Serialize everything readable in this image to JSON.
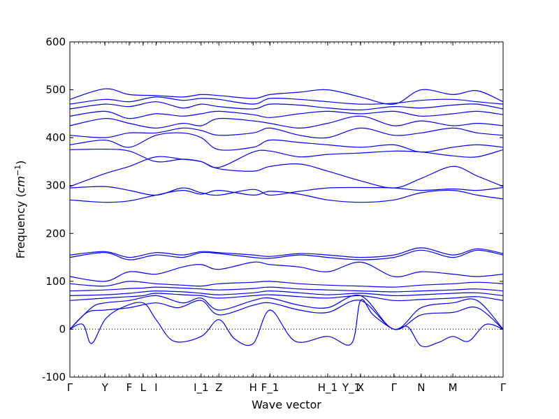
{
  "chart_data": {
    "type": "line",
    "title": "",
    "xlabel": "Wave vector",
    "ylabel": "Frequency",
    "ylabel_unit_base": "cm",
    "ylabel_unit_exp": "−1",
    "ylim": [
      -100,
      600
    ],
    "yticks": [
      -100,
      0,
      100,
      200,
      300,
      400,
      500,
      600
    ],
    "xlim": [
      0,
      100
    ],
    "grid": false,
    "legend": "none",
    "zero_line": 0,
    "line_color": "#0000ff",
    "high_symmetry_points": [
      {
        "label": "Γ",
        "x": 0
      },
      {
        "label": "Y",
        "x": 8.1
      },
      {
        "label": "F",
        "x": 13.7
      },
      {
        "label": "L",
        "x": 16.9
      },
      {
        "label": "I",
        "x": 19.9
      },
      {
        "label": "I_1",
        "x": 30.3
      },
      {
        "label": "Z",
        "x": 34.4
      },
      {
        "label": "H",
        "x": 42.3
      },
      {
        "label": "F_1",
        "x": 46.2
      },
      {
        "label": "H_1",
        "x": 59.5
      },
      {
        "label": "Y_1",
        "x": 65.0
      },
      {
        "label": "X",
        "x": 67.1
      },
      {
        "label": "Γ",
        "x": 74.8
      },
      {
        "label": "N",
        "x": 81.1
      },
      {
        "label": "M",
        "x": 88.4
      },
      {
        "label": "Γ",
        "x": 100
      }
    ],
    "series": [
      {
        "x": [
          0,
          3,
          5,
          8.1,
          12,
          16.9,
          19.9,
          24,
          30.3,
          34.4,
          38,
          42.3,
          46.2,
          52,
          59.5,
          65,
          67.1,
          70,
          74.8,
          78,
          81.1,
          85,
          88.4,
          92,
          96,
          100
        ],
        "y": [
          0,
          10,
          -30,
          20,
          45,
          55,
          20,
          -25,
          -15,
          20,
          -20,
          -30,
          40,
          -25,
          -15,
          -30,
          60,
          30,
          0,
          5,
          -35,
          -28,
          -15,
          -25,
          10,
          0
        ]
      },
      {
        "x": [
          0,
          4,
          8.1,
          13.7,
          19.9,
          25,
          30.3,
          34.4,
          42.3,
          46.2,
          53,
          59.5,
          67.1,
          74.8,
          81.1,
          88.4,
          94,
          100
        ],
        "y": [
          0,
          35,
          40,
          45,
          55,
          45,
          60,
          30,
          50,
          55,
          40,
          35,
          60,
          0,
          30,
          35,
          45,
          0
        ]
      },
      {
        "x": [
          0,
          5,
          8.1,
          13.7,
          19.9,
          26,
          30.3,
          34.4,
          42.3,
          46.2,
          53,
          59.5,
          67.1,
          74.8,
          81.1,
          88.4,
          94,
          100
        ],
        "y": [
          0,
          45,
          55,
          60,
          70,
          55,
          65,
          40,
          60,
          65,
          50,
          45,
          70,
          0,
          45,
          55,
          60,
          0
        ]
      },
      {
        "x": [
          0,
          8.1,
          13.7,
          16.9,
          19.9,
          26,
          30.3,
          34.4,
          42.3,
          46.2,
          53,
          59.5,
          67.1,
          74.8,
          81.1,
          88.4,
          94,
          100
        ],
        "y": [
          60,
          65,
          68,
          70,
          75,
          72,
          70,
          65,
          70,
          72,
          68,
          65,
          70,
          60,
          62,
          65,
          68,
          60
        ]
      },
      {
        "x": [
          0,
          8.1,
          13.7,
          16.9,
          19.9,
          26,
          30.3,
          34.4,
          42.3,
          46.2,
          53,
          59.5,
          67.1,
          74.8,
          81.1,
          88.4,
          94,
          100
        ],
        "y": [
          70,
          72,
          75,
          78,
          80,
          78,
          75,
          72,
          76,
          80,
          76,
          72,
          75,
          70,
          72,
          75,
          76,
          70
        ]
      },
      {
        "x": [
          0,
          8.1,
          13.7,
          16.9,
          19.9,
          26,
          30.3,
          34.4,
          42.3,
          46.2,
          53,
          59.5,
          67.1,
          74.8,
          81.1,
          88.4,
          94,
          100
        ],
        "y": [
          80,
          82,
          85,
          86,
          88,
          86,
          84,
          82,
          85,
          88,
          84,
          82,
          80,
          78,
          80,
          82,
          84,
          80
        ]
      },
      {
        "x": [
          0,
          8.1,
          13.7,
          19.9,
          26,
          30.3,
          34.4,
          42.3,
          46.2,
          53,
          59.5,
          67.1,
          74.8,
          81.1,
          88.4,
          94,
          100
        ],
        "y": [
          95,
          90,
          100,
          95,
          92,
          90,
          95,
          98,
          100,
          95,
          92,
          90,
          88,
          92,
          95,
          98,
          95
        ]
      },
      {
        "x": [
          0,
          8.1,
          13.7,
          19.9,
          26,
          30.3,
          34.4,
          42.3,
          46.2,
          53,
          59.5,
          67.1,
          74.8,
          81.1,
          88.4,
          94,
          100
        ],
        "y": [
          110,
          100,
          120,
          115,
          130,
          135,
          125,
          140,
          135,
          130,
          120,
          140,
          110,
          120,
          115,
          110,
          115
        ]
      },
      {
        "x": [
          0,
          8.1,
          13.7,
          19.9,
          26,
          30.3,
          34.4,
          42.3,
          46.2,
          53,
          59.5,
          67.1,
          74.8,
          81.1,
          88.4,
          94,
          100
        ],
        "y": [
          150,
          160,
          145,
          155,
          150,
          160,
          158,
          150,
          148,
          155,
          150,
          145,
          150,
          165,
          150,
          165,
          155
        ]
      },
      {
        "x": [
          0,
          8.1,
          13.7,
          19.9,
          26,
          30.3,
          34.4,
          42.3,
          46.2,
          53,
          59.5,
          67.1,
          74.8,
          81.1,
          88.4,
          94,
          100
        ],
        "y": [
          155,
          162,
          150,
          160,
          155,
          162,
          160,
          155,
          152,
          158,
          155,
          150,
          155,
          170,
          155,
          168,
          158
        ]
      },
      {
        "x": [
          0,
          8.1,
          13.7,
          19.9,
          26,
          30.3,
          34.4,
          42.3,
          46.2,
          53,
          59.5,
          67.1,
          74.8,
          81.1,
          88.4,
          94,
          100
        ],
        "y": [
          270,
          265,
          268,
          280,
          290,
          282,
          290,
          280,
          288,
          282,
          270,
          265,
          270,
          285,
          290,
          280,
          272
        ]
      },
      {
        "x": [
          0,
          8.1,
          13.7,
          19.9,
          26,
          30.3,
          34.4,
          42.3,
          46.2,
          53,
          59.5,
          67.1,
          74.8,
          81.1,
          88.4,
          94,
          100
        ],
        "y": [
          295,
          298,
          290,
          280,
          295,
          285,
          280,
          292,
          280,
          288,
          295,
          296,
          295,
          290,
          293,
          290,
          296
        ]
      },
      {
        "x": [
          0,
          8.1,
          13.7,
          19.9,
          26,
          30.3,
          34.4,
          42.3,
          46.2,
          53,
          59.5,
          67.1,
          74.8,
          81.1,
          88.4,
          94,
          100
        ],
        "y": [
          298,
          325,
          340,
          360,
          355,
          350,
          335,
          330,
          340,
          345,
          330,
          310,
          295,
          315,
          340,
          320,
          298
        ]
      },
      {
        "x": [
          0,
          8.1,
          13.7,
          19.9,
          26,
          30.3,
          34.4,
          42.3,
          46.2,
          53,
          59.5,
          67.1,
          74.8,
          81.1,
          88.4,
          94,
          100
        ],
        "y": [
          375,
          376,
          372,
          350,
          355,
          350,
          338,
          370,
          372,
          360,
          365,
          368,
          372,
          370,
          362,
          360,
          375
        ]
      },
      {
        "x": [
          0,
          8.1,
          13.7,
          19.9,
          26,
          30.3,
          34.4,
          42.3,
          46.2,
          53,
          59.5,
          67.1,
          74.8,
          81.1,
          88.4,
          94,
          100
        ],
        "y": [
          385,
          395,
          380,
          405,
          410,
          400,
          375,
          380,
          395,
          390,
          385,
          380,
          385,
          370,
          380,
          385,
          380
        ]
      },
      {
        "x": [
          0,
          8.1,
          13.7,
          19.9,
          26,
          30.3,
          34.4,
          42.3,
          46.2,
          53,
          59.5,
          67.1,
          74.8,
          81.1,
          88.4,
          94,
          100
        ],
        "y": [
          405,
          400,
          410,
          410,
          420,
          415,
          405,
          410,
          420,
          405,
          400,
          420,
          405,
          410,
          420,
          410,
          405
        ]
      },
      {
        "x": [
          0,
          8.1,
          13.7,
          19.9,
          26,
          30.3,
          34.4,
          42.3,
          46.2,
          53,
          59.5,
          67.1,
          74.8,
          81.1,
          88.4,
          94,
          100
        ],
        "y": [
          425,
          440,
          430,
          420,
          430,
          425,
          440,
          435,
          430,
          420,
          430,
          445,
          425,
          435,
          425,
          430,
          425
        ]
      },
      {
        "x": [
          0,
          8.1,
          13.7,
          19.9,
          26,
          30.3,
          34.4,
          42.3,
          46.2,
          53,
          59.5,
          67.1,
          74.8,
          81.1,
          88.4,
          94,
          100
        ],
        "y": [
          445,
          455,
          440,
          450,
          445,
          450,
          455,
          448,
          442,
          450,
          455,
          450,
          455,
          445,
          450,
          455,
          448
        ]
      },
      {
        "x": [
          0,
          8.1,
          13.7,
          19.9,
          26,
          30.3,
          34.4,
          42.3,
          46.2,
          53,
          59.5,
          67.1,
          74.8,
          81.1,
          88.4,
          94,
          100
        ],
        "y": [
          460,
          470,
          465,
          475,
          462,
          470,
          465,
          460,
          470,
          468,
          462,
          458,
          465,
          462,
          468,
          470,
          460
        ]
      },
      {
        "x": [
          0,
          8.1,
          13.7,
          19.9,
          26,
          30.3,
          34.4,
          42.3,
          46.2,
          53,
          59.5,
          67.1,
          74.8,
          81.1,
          88.4,
          94,
          100
        ],
        "y": [
          470,
          480,
          475,
          485,
          478,
          482,
          480,
          470,
          482,
          480,
          475,
          470,
          472,
          478,
          480,
          475,
          470
        ]
      },
      {
        "x": [
          0,
          8.1,
          13.7,
          19.9,
          26,
          30.3,
          34.4,
          42.3,
          46.2,
          53,
          59.5,
          67.1,
          74.8,
          81.1,
          88.4,
          94,
          100
        ],
        "y": [
          480,
          502,
          490,
          488,
          485,
          490,
          488,
          482,
          490,
          495,
          500,
          485,
          470,
          500,
          490,
          498,
          475
        ]
      }
    ]
  }
}
